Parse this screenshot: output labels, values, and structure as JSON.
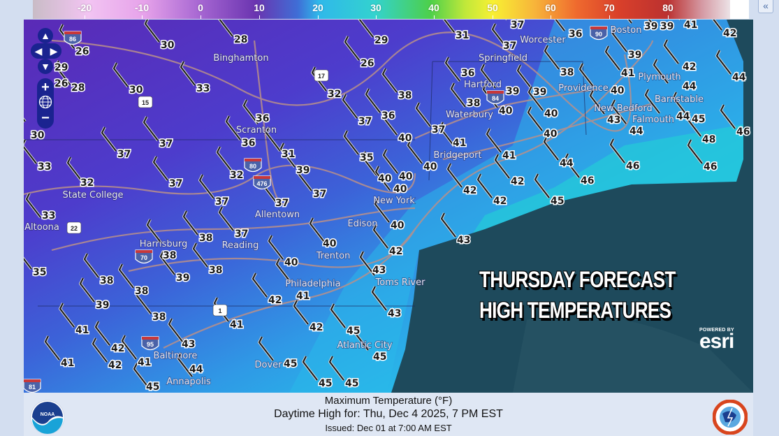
{
  "legend": {
    "ticks": [
      "-20",
      "-10",
      "0",
      "10",
      "20",
      "30",
      "40",
      "50",
      "60",
      "70",
      "80"
    ],
    "unit": "°F",
    "collapse_label": "«"
  },
  "map": {
    "overlay_title_line1": "THURSDAY FORECAST",
    "overlay_title_line2": "HIGH TEMPERATURES",
    "attribution_powered": "POWERED BY",
    "attribution_brand": "esri",
    "colors": {
      "land_cold": "#5b2ab8",
      "land_mid": "#3c5fd6",
      "land_warm": "#22c6e6",
      "ocean": "#1e4a5c"
    },
    "controls": {
      "pan_up": "▲",
      "pan_left": "◀",
      "pan_right": "▶",
      "pan_down": "▼",
      "zoom_in": "+",
      "zoom_out": "−",
      "globe": "globe-icon"
    },
    "places": [
      "Binghamton",
      "Scranton",
      "State College",
      "Altoona",
      "Allentown",
      "Reading",
      "Harrisburg",
      "Philadelphia",
      "Trenton",
      "Edison",
      "New York",
      "Toms River",
      "Atlantic City",
      "Baltimore",
      "Dover",
      "Annapolis",
      "Bridgeport",
      "Waterbury",
      "Hartford",
      "Springfield",
      "Worcester",
      "Boston",
      "Providence",
      "Plymouth",
      "New Bedford",
      "Barnstable",
      "Falmouth"
    ],
    "highways": [
      "86",
      "15",
      "17",
      "80",
      "476",
      "22",
      "70",
      "84",
      "90",
      "1",
      "95",
      "81"
    ],
    "temperatures": [
      "26",
      "30",
      "28",
      "29",
      "26",
      "29",
      "26",
      "28",
      "30",
      "33",
      "32",
      "38",
      "30",
      "36",
      "36",
      "37",
      "36",
      "31",
      "37",
      "37",
      "33",
      "35",
      "32",
      "37",
      "32",
      "39",
      "40",
      "40",
      "37",
      "37",
      "37",
      "40",
      "37",
      "31",
      "36",
      "39",
      "39",
      "41",
      "42",
      "37",
      "39",
      "42",
      "44",
      "38",
      "41",
      "44",
      "36",
      "39",
      "39",
      "40",
      "38",
      "40",
      "40",
      "43",
      "44",
      "45",
      "44",
      "40",
      "37",
      "40",
      "46",
      "48",
      "41",
      "41",
      "40",
      "44",
      "46",
      "46",
      "42",
      "46",
      "42",
      "42",
      "45",
      "33",
      "38",
      "37",
      "38",
      "40",
      "40",
      "42",
      "43",
      "35",
      "38",
      "39",
      "38",
      "40",
      "43",
      "41",
      "38",
      "42",
      "39",
      "43",
      "38",
      "41",
      "42",
      "45",
      "41",
      "42",
      "43",
      "41",
      "45",
      "41",
      "42",
      "45",
      "44",
      "45",
      "45",
      "45"
    ]
  },
  "footer": {
    "line1": "Maximum Temperature (°F)",
    "line2": "Daytime High for: Thu, Dec   4 2025,   7 PM EST",
    "line3": "Issued: Dec 01 at 7:00 AM EST",
    "left_logo": "NOAA",
    "right_logo": "NATIONAL WEATHER SERVICE"
  }
}
